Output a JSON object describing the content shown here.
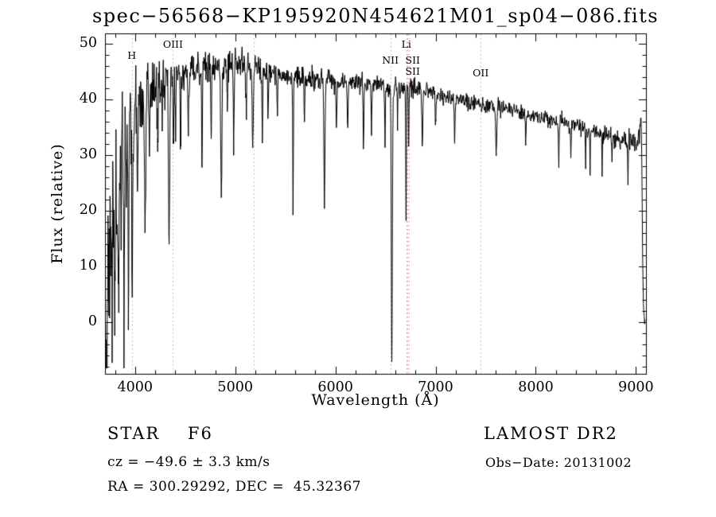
{
  "chart_data": {
    "type": "line",
    "title": "spec−56568−KP195920N454621M01_sp04−086.fits",
    "xlabel": "Wavelength (Å)",
    "ylabel": "Flux (relative)",
    "xlim": [
      3700,
      9100
    ],
    "ylim": [
      -9.3,
      51.9
    ],
    "data_range": [
      3706,
      9092
    ],
    "xticks": [
      4000,
      5000,
      6000,
      7000,
      8000,
      9000
    ],
    "x_minor_step": 200,
    "yticks": [
      0,
      10,
      20,
      30,
      40,
      50
    ],
    "y_minor_step": 2,
    "line_color": "#000000",
    "background": "#ffffff",
    "marker_colors": {
      "gray": "#b5aeae",
      "pink": "#d89494"
    },
    "line_markers": [
      {
        "label": "H",
        "wavelength": 3968,
        "color": "gray",
        "label_py": 62
      },
      {
        "label": "OIII",
        "wavelength": 4378,
        "color": "gray",
        "label_py": 48
      },
      {
        "label": "",
        "wavelength": 5185,
        "color": "gray"
      },
      {
        "label": "NII",
        "wavelength": 6548,
        "color": "pink",
        "label_py": 68
      },
      {
        "label": "Li",
        "wavelength": 6708,
        "color": "pink",
        "label_py": 48
      },
      {
        "label": "SII",
        "wavelength": 6716,
        "color": "pink",
        "label_py": 68,
        "label_dx": 7
      },
      {
        "label": "SII",
        "wavelength": 6731,
        "color": "pink",
        "label_py": 82,
        "label_dx": 5
      },
      {
        "label": "OII",
        "wavelength": 7450,
        "color": "gray",
        "label_py": 84
      }
    ],
    "continuum": [
      [
        3700,
        10
      ],
      [
        3715,
        18
      ],
      [
        3735,
        24
      ],
      [
        3765,
        28
      ],
      [
        3800,
        31
      ],
      [
        3850,
        33.5
      ],
      [
        3900,
        35.5
      ],
      [
        3950,
        37.5
      ],
      [
        4000,
        39
      ],
      [
        4060,
        40.5
      ],
      [
        4150,
        42
      ],
      [
        4250,
        43.5
      ],
      [
        4400,
        44.5
      ],
      [
        4550,
        45
      ],
      [
        4700,
        45.5
      ],
      [
        4850,
        46
      ],
      [
        5000,
        46.2
      ],
      [
        5150,
        46
      ],
      [
        5300,
        45.2
      ],
      [
        5450,
        44.5
      ],
      [
        5600,
        44
      ],
      [
        5800,
        43.6
      ],
      [
        6000,
        43.2
      ],
      [
        6200,
        43
      ],
      [
        6400,
        42.6
      ],
      [
        6600,
        42.3
      ],
      [
        6800,
        42
      ],
      [
        6950,
        41.4
      ],
      [
        7100,
        40.6
      ],
      [
        7250,
        40
      ],
      [
        7400,
        39.5
      ],
      [
        7600,
        38.7
      ],
      [
        7800,
        37.9
      ],
      [
        8000,
        37
      ],
      [
        8200,
        36.2
      ],
      [
        8400,
        35.3
      ],
      [
        8600,
        34.3
      ],
      [
        8800,
        33.2
      ],
      [
        8950,
        32.2
      ],
      [
        9010,
        31.8
      ],
      [
        9035,
        34.5
      ],
      [
        9050,
        37
      ],
      [
        9058,
        30
      ],
      [
        9068,
        8
      ],
      [
        9080,
        0.5
      ],
      [
        9092,
        0.5
      ]
    ],
    "absorption_lines": [
      [
        3712,
        16,
        4
      ],
      [
        3722,
        18,
        4
      ],
      [
        3734,
        21,
        4
      ],
      [
        3746,
        15,
        3
      ],
      [
        3759,
        22,
        4
      ],
      [
        3771,
        24,
        4
      ],
      [
        3785,
        14,
        3
      ],
      [
        3798,
        26,
        5
      ],
      [
        3820,
        16,
        4
      ],
      [
        3835,
        29,
        5
      ],
      [
        3860,
        15,
        4
      ],
      [
        3889,
        31,
        5
      ],
      [
        3912,
        13,
        4
      ],
      [
        3933,
        29,
        5
      ],
      [
        3970,
        31,
        5
      ],
      [
        4026,
        13,
        4
      ],
      [
        4101,
        27,
        6
      ],
      [
        4144,
        10,
        4
      ],
      [
        4226,
        11,
        4
      ],
      [
        4271,
        9,
        4
      ],
      [
        4340,
        30,
        6
      ],
      [
        4383,
        13,
        4
      ],
      [
        4404,
        10,
        4
      ],
      [
        4455,
        12,
        4
      ],
      [
        4531,
        9,
        4
      ],
      [
        4668,
        17,
        4
      ],
      [
        4760,
        11,
        4
      ],
      [
        4861,
        24,
        6
      ],
      [
        4920,
        8,
        4
      ],
      [
        4985,
        14,
        4
      ],
      [
        5110,
        9,
        4
      ],
      [
        5175,
        15,
        6
      ],
      [
        5270,
        12,
        4
      ],
      [
        5328,
        8,
        4
      ],
      [
        5420,
        7,
        4
      ],
      [
        5577,
        25,
        3
      ],
      [
        5690,
        7,
        4
      ],
      [
        5890,
        23,
        5
      ],
      [
        6010,
        8,
        4
      ],
      [
        6122,
        9,
        4
      ],
      [
        6280,
        12,
        4
      ],
      [
        6360,
        7,
        4
      ],
      [
        6495,
        9,
        4
      ],
      [
        6563,
        49,
        5
      ],
      [
        6620,
        7,
        3
      ],
      [
        6705,
        24,
        3
      ],
      [
        6731,
        10,
        3
      ],
      [
        6867,
        10,
        5
      ],
      [
        7000,
        6,
        4
      ],
      [
        7190,
        7,
        4
      ],
      [
        7605,
        8,
        6
      ],
      [
        7900,
        5,
        4
      ],
      [
        8230,
        7,
        4
      ],
      [
        8350,
        5,
        3
      ],
      [
        8498,
        6,
        3
      ],
      [
        8542,
        8,
        3
      ],
      [
        8662,
        7,
        3
      ],
      [
        8760,
        5,
        3
      ],
      [
        8920,
        6,
        3
      ]
    ],
    "noise_profile": [
      [
        3700,
        7
      ],
      [
        3780,
        6.5
      ],
      [
        3860,
        5.5
      ],
      [
        3950,
        4.8
      ],
      [
        4050,
        3.4
      ],
      [
        4250,
        2.4
      ],
      [
        4500,
        1.9
      ],
      [
        4800,
        1.5
      ],
      [
        5200,
        1.2
      ],
      [
        5600,
        1.05
      ],
      [
        6000,
        0.9
      ],
      [
        6500,
        0.8
      ],
      [
        7000,
        0.75
      ],
      [
        7500,
        0.7
      ],
      [
        8000,
        0.75
      ],
      [
        8500,
        0.85
      ],
      [
        9000,
        1.0
      ],
      [
        9092,
        0.8
      ]
    ],
    "noise_seed": 20131002
  },
  "annotations": {
    "class_label": "STAR    F6",
    "survey": "LAMOST DR2",
    "cz": "cz = −49.6 ± 3.3 km/s",
    "obs_date": "Obs−Date: 20131002",
    "radec": "RA = 300.29292, DEC =  45.32367"
  }
}
